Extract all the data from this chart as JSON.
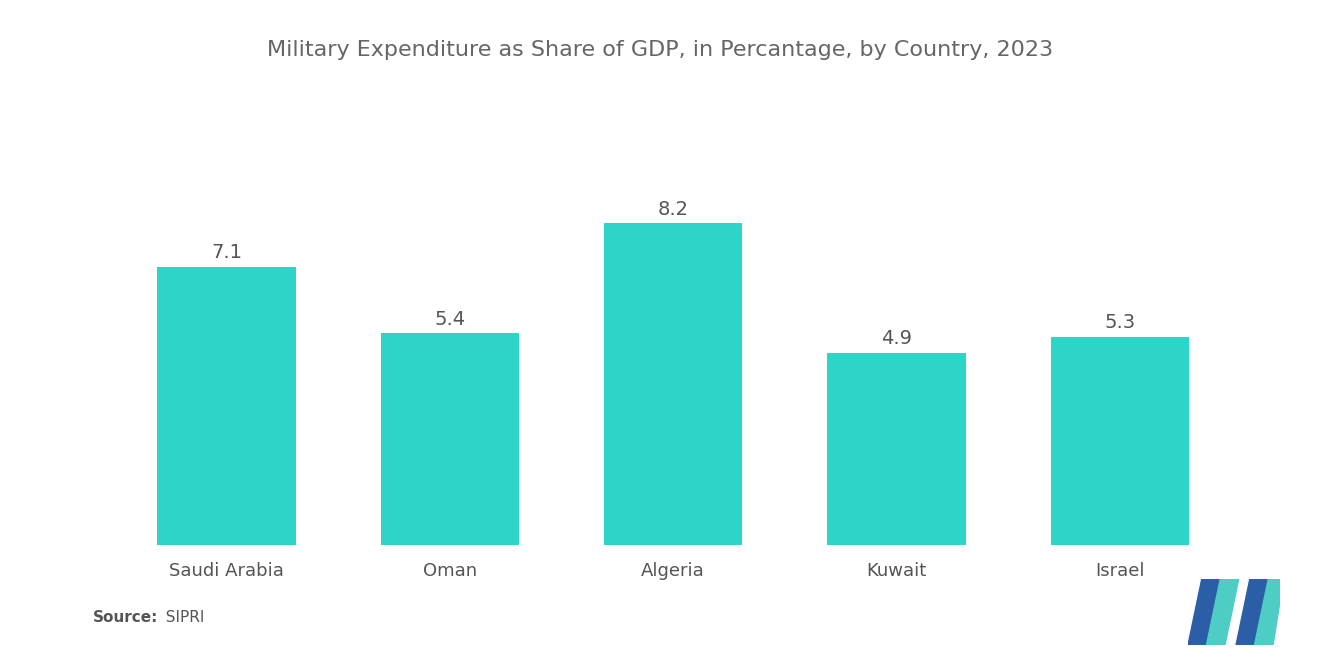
{
  "title": "Military Expenditure as Share of GDP, in Percantage, by Country, 2023",
  "categories": [
    "Saudi Arabia",
    "Oman",
    "Algeria",
    "Kuwait",
    "Israel"
  ],
  "values": [
    7.1,
    5.4,
    8.2,
    4.9,
    5.3
  ],
  "bar_color": "#2DD4C8",
  "background_color": "#ffffff",
  "title_fontsize": 16,
  "label_fontsize": 13,
  "value_fontsize": 14,
  "source_bold": "Source:",
  "source_normal": "  SIPRI",
  "ylim": [
    0,
    10.5
  ],
  "bar_width": 0.62
}
